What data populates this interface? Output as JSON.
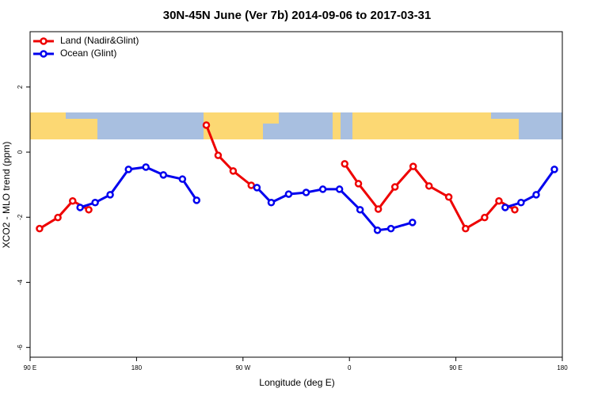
{
  "chart_data": {
    "type": "line",
    "title": "30N-45N June (Ver 7b)   2014-09-06 to 2017-03-31",
    "xlabel": "Longitude (deg E)",
    "ylabel": "XCO2 - MLO trend (ppm)",
    "xlim": [
      90,
      540
    ],
    "ylim": [
      -6.3,
      3.7
    ],
    "xticks": [
      {
        "value": 90,
        "label": "90 E"
      },
      180,
      {
        "value": 270,
        "label": "90 W"
      },
      {
        "value": 360,
        "label": "0"
      },
      {
        "value": 450,
        "label": "90 E"
      },
      {
        "value": 540,
        "label": "180"
      }
    ],
    "yticks": [
      -6,
      -4,
      -2,
      0,
      2
    ],
    "legend": "top-left",
    "series": [
      {
        "name": "Land (Nadir&Glint)",
        "color": "#ee0000",
        "x": [
          98,
          113.5,
          126,
          139.6,
          null,
          239,
          249,
          261.7,
          277,
          null,
          356,
          367.6,
          384.4,
          398.5,
          413.9,
          427.3,
          444,
          458.2,
          474.3,
          486.4,
          499.8
        ],
        "values": [
          -2.35,
          -2.01,
          -1.5,
          -1.77,
          null,
          0.83,
          -0.1,
          -0.58,
          -1.02,
          null,
          -0.36,
          -0.97,
          -1.75,
          -1.07,
          -0.44,
          -1.04,
          -1.38,
          -2.35,
          -2.01,
          -1.5,
          -1.77
        ]
      },
      {
        "name": "Ocean (Glint)",
        "color": "#0000ee",
        "x": [
          132.3,
          145,
          157.7,
          173.2,
          187.9,
          202.7,
          218.8,
          230.8,
          null,
          281.8,
          293.9,
          308.6,
          323.4,
          337.5,
          351.6,
          369,
          383.7,
          395.1,
          413.3,
          null,
          491.7,
          505.1,
          517.9,
          533.3
        ],
        "values": [
          -1.7,
          -1.55,
          -1.31,
          -0.53,
          -0.46,
          -0.7,
          -0.83,
          -1.48,
          null,
          -1.09,
          -1.55,
          -1.29,
          -1.24,
          -1.14,
          -1.14,
          -1.77,
          -2.4,
          -2.35,
          -2.16,
          null,
          -1.7,
          -1.55,
          -1.31,
          -0.53
        ]
      }
    ]
  }
}
